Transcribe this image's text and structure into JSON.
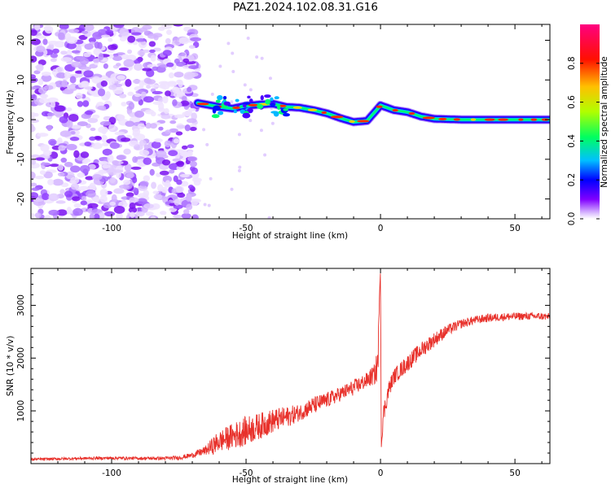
{
  "page_title": "PAZ1.2024.102.08.31.G16",
  "chart_data": [
    {
      "type": "heatmap",
      "name": "spectrogram",
      "xlabel": "Height of straight line (km)",
      "ylabel": "Frequency (Hz)",
      "xlim": [
        -130,
        63
      ],
      "ylim": [
        -25,
        24
      ],
      "x_ticks": [
        -100,
        -50,
        0,
        50
      ],
      "y_ticks": [
        -20,
        -10,
        0,
        10,
        20
      ],
      "colorbar": {
        "label": "Normalized spectral amplitude",
        "range": [
          0,
          1
        ],
        "ticks": [
          "0.0",
          "0.2",
          "0.4",
          "0.6",
          "0.8"
        ],
        "colormap": [
          "#ffffff",
          "#cfa8ff",
          "#8000ff",
          "#0000ff",
          "#00c0ff",
          "#00ff60",
          "#c0ff00",
          "#ffc000",
          "#ff0000",
          "#ff0080"
        ]
      },
      "noise_region_km": [
        -130,
        -68
      ],
      "dominant_frequency_track": {
        "x": [
          -68,
          -60,
          -55,
          -50,
          -45,
          -40,
          -35,
          -30,
          -25,
          -20,
          -15,
          -10,
          -5,
          -2,
          0,
          5,
          10,
          15,
          20,
          30,
          40,
          50,
          63
        ],
        "y": [
          4.2,
          3.2,
          2.8,
          3.5,
          3.8,
          4.0,
          3.2,
          3.0,
          2.4,
          1.6,
          0.4,
          -0.6,
          -0.3,
          2.0,
          3.6,
          2.4,
          1.9,
          0.8,
          0.2,
          0.0,
          0.0,
          0.0,
          0.0
        ]
      }
    },
    {
      "type": "line",
      "name": "snr",
      "xlabel": "Height of straight line (km)",
      "ylabel": "SNR (10 * v/v)",
      "xlim": [
        -130,
        63
      ],
      "ylim": [
        0,
        3700
      ],
      "x_ticks": [
        -100,
        -50,
        0,
        50
      ],
      "y_ticks": [
        1000,
        2000,
        3000
      ],
      "color": "#e8312b",
      "x": [
        -130,
        -120,
        -110,
        -100,
        -90,
        -80,
        -75,
        -70,
        -65,
        -62,
        -60,
        -55,
        -50,
        -45,
        -40,
        -35,
        -30,
        -25,
        -20,
        -15,
        -10,
        -5,
        -2,
        -1,
        -0.3,
        0,
        0.3,
        1,
        3,
        5,
        10,
        15,
        20,
        25,
        30,
        35,
        40,
        45,
        50,
        55,
        60,
        63
      ],
      "y": [
        80,
        90,
        100,
        105,
        100,
        100,
        110,
        160,
        250,
        350,
        420,
        520,
        620,
        710,
        810,
        880,
        970,
        1100,
        1200,
        1320,
        1440,
        1580,
        1700,
        1900,
        3300,
        3650,
        300,
        900,
        1400,
        1650,
        1900,
        2150,
        2350,
        2530,
        2650,
        2720,
        2760,
        2780,
        2790,
        2795,
        2790,
        2780
      ],
      "noise_amplitude": [
        25,
        25,
        25,
        30,
        30,
        35,
        40,
        50,
        90,
        180,
        200,
        250,
        280,
        250,
        230,
        200,
        160,
        170,
        150,
        140,
        150,
        150,
        200,
        400,
        0,
        0,
        0,
        200,
        160,
        150,
        160,
        150,
        140,
        110,
        90,
        80,
        80,
        75,
        75,
        70,
        70,
        70
      ]
    }
  ]
}
